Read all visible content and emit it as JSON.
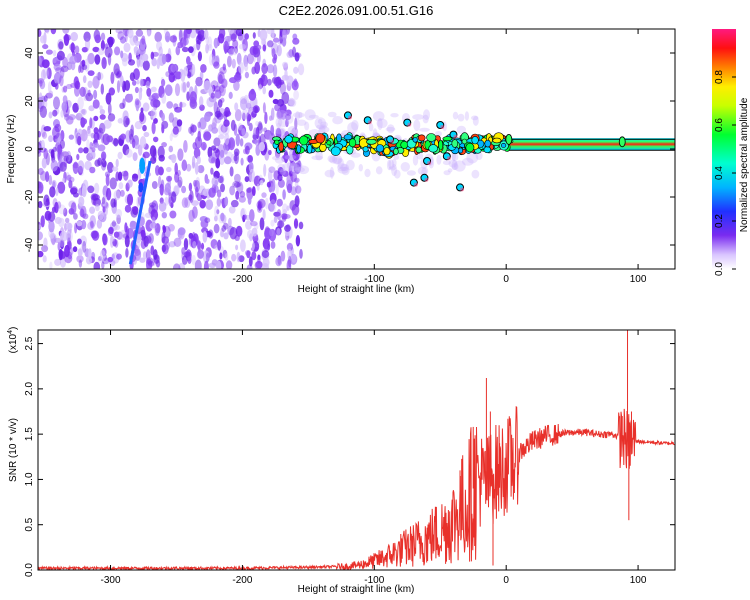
{
  "title": "C2E2.2026.091.00.51.G16",
  "chart_data": [
    {
      "type": "heatmap",
      "xlabel": "Height of straight line (km)",
      "ylabel": "Frequency (Hz)",
      "xlim": [
        -355,
        128
      ],
      "ylim": [
        -50,
        50
      ],
      "x_ticks": [
        -300,
        -200,
        -100,
        0,
        100
      ],
      "y_ticks": [
        -40,
        -20,
        0,
        20,
        40
      ],
      "colorbar": {
        "label": "Normalized spectral amplitude",
        "range": [
          0,
          1
        ],
        "ticks": [
          "0.0",
          "0.2",
          "0.4",
          "0.6",
          "0.8"
        ],
        "colormap": "rainbow (white-violet-blue-cyan-green-yellow-red-magenta)"
      },
      "features": {
        "noise_region_x": [
          -355,
          -160
        ],
        "noise_color": "#7a2cf0",
        "diagonal_streak": {
          "x": [
            -285,
            -270
          ],
          "y": [
            -48,
            -5
          ]
        },
        "signal_band_x": [
          -175,
          128
        ],
        "signal_center_hz": 2,
        "scatter_blobs": [
          {
            "x": -120,
            "y": 14
          },
          {
            "x": -105,
            "y": 12
          },
          {
            "x": -75,
            "y": 11
          },
          {
            "x": -50,
            "y": 10
          },
          {
            "x": -88,
            "y": 4
          },
          {
            "x": -60,
            "y": -5
          },
          {
            "x": -40,
            "y": 6
          },
          {
            "x": -35,
            "y": -16
          },
          {
            "x": -62,
            "y": -12
          },
          {
            "x": -70,
            "y": -14
          },
          {
            "x": -45,
            "y": -3
          }
        ]
      }
    },
    {
      "type": "line",
      "xlabel": "Height of straight line (km)",
      "ylabel": "SNR (10 * v/v)",
      "scale_label": "(x10",
      "scale_exp": "4",
      "scale_close": ")",
      "xlim": [
        -355,
        128
      ],
      "ylim": [
        0,
        2.65
      ],
      "x_ticks": [
        -300,
        -200,
        -100,
        0,
        100
      ],
      "y_ticks": [
        "0.0",
        "0.5",
        "1.0",
        "1.5",
        "2.0",
        "2.5"
      ],
      "y_tick_values": [
        0,
        0.5,
        1.0,
        1.5,
        2.0,
        2.5
      ],
      "line_color": "#e8302a",
      "series": [
        {
          "x": [
            -355,
            -300,
            -250,
            -200,
            -150,
            -120,
            -110,
            -100,
            -90,
            -80,
            -70,
            -60,
            -50,
            -40,
            -30,
            -25,
            -20,
            -15,
            -10,
            -5,
            0,
            5,
            10,
            20,
            30,
            40,
            50,
            60,
            70,
            80,
            85,
            90,
            92,
            94,
            96,
            100,
            110,
            120,
            128
          ],
          "y": [
            0.02,
            0.02,
            0.02,
            0.02,
            0.03,
            0.04,
            0.06,
            0.1,
            0.15,
            0.22,
            0.28,
            0.35,
            0.42,
            0.55,
            0.75,
            0.9,
            1.0,
            0.95,
            1.05,
            1.1,
            1.15,
            1.2,
            1.3,
            1.42,
            1.48,
            1.5,
            1.52,
            1.52,
            1.5,
            1.5,
            1.48,
            1.45,
            1.42,
            1.4,
            1.42,
            1.42,
            1.41,
            1.4,
            1.4
          ]
        }
      ],
      "spikes": [
        {
          "x": -15,
          "y": 2.12
        },
        {
          "x": -12,
          "y": 1.75
        },
        {
          "x": -25,
          "y": 1.58
        },
        {
          "x": -35,
          "y": 1.1
        },
        {
          "x": -10,
          "y": 0.05
        },
        {
          "x": -5,
          "y": 1.4
        },
        {
          "x": 92,
          "y": 2.65
        },
        {
          "x": 93,
          "y": 0.55
        },
        {
          "x": 88,
          "y": 1.7
        },
        {
          "x": 95,
          "y": 1.75
        }
      ]
    }
  ]
}
